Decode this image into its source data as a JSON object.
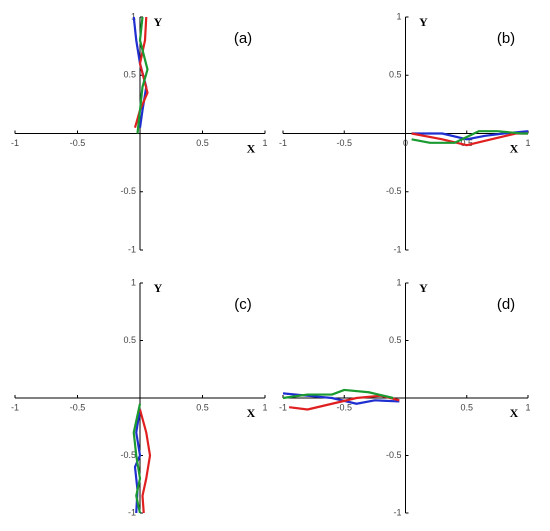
{
  "chart_data": [
    {
      "type": "line",
      "title": "(a)",
      "xlabel": "X",
      "ylabel": "Y",
      "xlim": [
        -1,
        1
      ],
      "ylim": [
        -1,
        1
      ],
      "xticks": [
        -1,
        -0.5,
        0.5,
        1
      ],
      "yticks": [
        -1,
        -0.5,
        0.5,
        1
      ],
      "series": [
        {
          "color": "#1f2fd0",
          "x": [
            -0.05,
            -0.03,
            0.0,
            0.05,
            0.02,
            0.0
          ],
          "values": [
            1,
            0.8,
            0.6,
            0.4,
            0.2,
            0.05
          ]
        },
        {
          "color": "#e02020",
          "x": [
            0.05,
            0.04,
            0.0,
            0.06,
            0.0,
            -0.04
          ],
          "values": [
            1,
            0.8,
            0.6,
            0.35,
            0.2,
            0.05
          ]
        },
        {
          "color": "#1a9a30",
          "x": [
            0.02,
            0.0,
            0.06,
            0.02,
            0.0,
            -0.02
          ],
          "values": [
            1,
            0.8,
            0.55,
            0.4,
            0.2,
            0.0
          ]
        }
      ]
    },
    {
      "type": "line",
      "title": "(b)",
      "xlabel": "X",
      "ylabel": "Y",
      "xlim": [
        -1,
        1
      ],
      "ylim": [
        -1,
        1
      ],
      "xticks": [
        -1,
        -0.5,
        0,
        0.5,
        1
      ],
      "yticks": [
        -1,
        -0.5,
        0.5,
        1
      ],
      "series": [
        {
          "color": "#1f2fd0",
          "x": [
            0.05,
            0.3,
            0.5,
            0.65,
            0.8,
            1.0
          ],
          "values": [
            0.0,
            0.0,
            -0.05,
            -0.02,
            0.0,
            0.02
          ]
        },
        {
          "color": "#e02020",
          "x": [
            0.05,
            0.3,
            0.5,
            0.7,
            0.9,
            1.0
          ],
          "values": [
            0.0,
            -0.05,
            -0.1,
            -0.05,
            0.0,
            0.0
          ]
        },
        {
          "color": "#1a9a30",
          "x": [
            0.05,
            0.2,
            0.4,
            0.6,
            0.75,
            0.95,
            1.0
          ],
          "values": [
            -0.05,
            -0.08,
            -0.08,
            0.02,
            0.02,
            0.0,
            0.0
          ]
        }
      ]
    },
    {
      "type": "line",
      "title": "(c)",
      "xlabel": "X",
      "ylabel": "Y",
      "xlim": [
        -1,
        1
      ],
      "ylim": [
        -1,
        1
      ],
      "xticks": [
        -1,
        -0.5,
        0.5,
        1
      ],
      "yticks": [
        -1,
        -0.5,
        0.5,
        1
      ],
      "series": [
        {
          "color": "#1f2fd0",
          "x": [
            0.0,
            -0.03,
            0.0,
            -0.04,
            -0.02,
            -0.03
          ],
          "values": [
            -0.1,
            -0.3,
            -0.5,
            -0.6,
            -0.8,
            -1
          ]
        },
        {
          "color": "#e02020",
          "x": [
            0.0,
            0.05,
            0.08,
            0.05,
            0.02,
            0.03
          ],
          "values": [
            -0.1,
            -0.3,
            -0.5,
            -0.7,
            -0.85,
            -1
          ]
        },
        {
          "color": "#1a9a30",
          "x": [
            0.0,
            -0.05,
            -0.03,
            0.0,
            -0.03,
            0.0
          ],
          "values": [
            -0.05,
            -0.3,
            -0.5,
            -0.7,
            -0.85,
            -1
          ]
        }
      ]
    },
    {
      "type": "line",
      "title": "(d)",
      "xlabel": "X",
      "ylabel": "Y",
      "xlim": [
        -1,
        1
      ],
      "ylim": [
        -1,
        1
      ],
      "xticks": [
        -1,
        -0.5,
        0.5,
        1
      ],
      "yticks": [
        -1,
        -0.5,
        0.5,
        1
      ],
      "series": [
        {
          "color": "#1f2fd0",
          "x": [
            -1.0,
            -0.8,
            -0.6,
            -0.4,
            -0.25,
            -0.05
          ],
          "values": [
            0.04,
            0.02,
            0.0,
            -0.05,
            -0.02,
            -0.03
          ]
        },
        {
          "color": "#e02020",
          "x": [
            -0.95,
            -0.8,
            -0.6,
            -0.4,
            -0.2,
            -0.05
          ],
          "values": [
            -0.08,
            -0.1,
            -0.05,
            0.0,
            0.02,
            -0.02
          ]
        },
        {
          "color": "#1a9a30",
          "x": [
            -1.0,
            -0.8,
            -0.6,
            -0.5,
            -0.3,
            -0.1
          ],
          "values": [
            0.0,
            0.03,
            0.03,
            0.07,
            0.05,
            0.0
          ]
        }
      ]
    }
  ]
}
